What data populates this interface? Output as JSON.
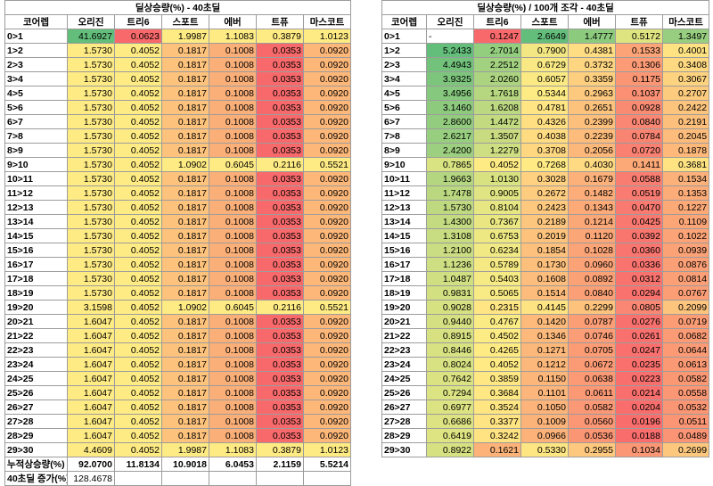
{
  "left": {
    "title": "딜상승량(%) - 40초딜",
    "headers": [
      "코어렙",
      "오리진",
      "트리6",
      "스포트",
      "에버",
      "트퓨",
      "마스코트"
    ],
    "rows": [
      [
        "0>1",
        "41.6927",
        "0.0623",
        "1.9987",
        "1.1083",
        "0.3879",
        "1.0123"
      ],
      [
        "1>2",
        "1.5730",
        "0.4052",
        "0.1817",
        "0.1008",
        "0.0353",
        "0.0920"
      ],
      [
        "2>3",
        "1.5730",
        "0.4052",
        "0.1817",
        "0.1008",
        "0.0353",
        "0.0920"
      ],
      [
        "3>4",
        "1.5730",
        "0.4052",
        "0.1817",
        "0.1008",
        "0.0353",
        "0.0920"
      ],
      [
        "4>5",
        "1.5730",
        "0.4052",
        "0.1817",
        "0.1008",
        "0.0353",
        "0.0920"
      ],
      [
        "5>6",
        "1.5730",
        "0.4052",
        "0.1817",
        "0.1008",
        "0.0353",
        "0.0920"
      ],
      [
        "6>7",
        "1.5730",
        "0.4052",
        "0.1817",
        "0.1008",
        "0.0353",
        "0.0920"
      ],
      [
        "7>8",
        "1.5730",
        "0.4052",
        "0.1817",
        "0.1008",
        "0.0353",
        "0.0920"
      ],
      [
        "8>9",
        "1.5730",
        "0.4052",
        "0.1817",
        "0.1008",
        "0.0353",
        "0.0920"
      ],
      [
        "9>10",
        "1.5730",
        "0.4052",
        "1.0902",
        "0.6045",
        "0.2116",
        "0.5521"
      ],
      [
        "10>11",
        "1.5730",
        "0.4052",
        "0.1817",
        "0.1008",
        "0.0353",
        "0.0920"
      ],
      [
        "11>12",
        "1.5730",
        "0.4052",
        "0.1817",
        "0.1008",
        "0.0353",
        "0.0920"
      ],
      [
        "12>13",
        "1.5730",
        "0.4052",
        "0.1817",
        "0.1008",
        "0.0353",
        "0.0920"
      ],
      [
        "13>14",
        "1.5730",
        "0.4052",
        "0.1817",
        "0.1008",
        "0.0353",
        "0.0920"
      ],
      [
        "14>15",
        "1.5730",
        "0.4052",
        "0.1817",
        "0.1008",
        "0.0353",
        "0.0920"
      ],
      [
        "15>16",
        "1.5730",
        "0.4052",
        "0.1817",
        "0.1008",
        "0.0353",
        "0.0920"
      ],
      [
        "16>17",
        "1.5730",
        "0.4052",
        "0.1817",
        "0.1008",
        "0.0353",
        "0.0920"
      ],
      [
        "17>18",
        "1.5730",
        "0.4052",
        "0.1817",
        "0.1008",
        "0.0353",
        "0.0920"
      ],
      [
        "18>19",
        "1.5730",
        "0.4052",
        "0.1817",
        "0.1008",
        "0.0353",
        "0.0920"
      ],
      [
        "19>20",
        "3.1598",
        "0.4052",
        "1.0902",
        "0.6045",
        "0.2116",
        "0.5521"
      ],
      [
        "20>21",
        "1.6047",
        "0.4052",
        "0.1817",
        "0.1008",
        "0.0353",
        "0.0920"
      ],
      [
        "21>22",
        "1.6047",
        "0.4052",
        "0.1817",
        "0.1008",
        "0.0353",
        "0.0920"
      ],
      [
        "22>23",
        "1.6047",
        "0.4052",
        "0.1817",
        "0.1008",
        "0.0353",
        "0.0920"
      ],
      [
        "23>24",
        "1.6047",
        "0.4052",
        "0.1817",
        "0.1008",
        "0.0353",
        "0.0920"
      ],
      [
        "24>25",
        "1.6047",
        "0.4052",
        "0.1817",
        "0.1008",
        "0.0353",
        "0.0920"
      ],
      [
        "25>26",
        "1.6047",
        "0.4052",
        "0.1817",
        "0.1008",
        "0.0353",
        "0.0920"
      ],
      [
        "26>27",
        "1.6047",
        "0.4052",
        "0.1817",
        "0.1008",
        "0.0353",
        "0.0920"
      ],
      [
        "27>28",
        "1.6047",
        "0.4052",
        "0.1817",
        "0.1008",
        "0.0353",
        "0.0920"
      ],
      [
        "28>29",
        "1.6047",
        "0.4052",
        "0.1817",
        "0.1008",
        "0.0353",
        "0.0920"
      ],
      [
        "29>30",
        "4.4609",
        "0.4052",
        "1.9987",
        "1.1083",
        "0.3879",
        "1.0123"
      ]
    ],
    "colors": [
      [
        "#63be7b",
        "#f8696b",
        "#ffeb84",
        "#ffeb84",
        "#ffeb84",
        "#ffeb84"
      ],
      [
        "#ffeb84",
        "#ffeb84",
        "#fdc27c",
        "#fbaf78",
        "#f8696b",
        "#fdb779"
      ],
      [
        "#ffeb84",
        "#ffeb84",
        "#fdc27c",
        "#fbaf78",
        "#f8696b",
        "#fdb779"
      ],
      [
        "#ffeb84",
        "#ffeb84",
        "#fdc27c",
        "#fbaf78",
        "#f8696b",
        "#fdb779"
      ],
      [
        "#ffeb84",
        "#ffeb84",
        "#fdc27c",
        "#fbaf78",
        "#f8696b",
        "#fdb779"
      ],
      [
        "#ffeb84",
        "#ffeb84",
        "#fdc27c",
        "#fbaf78",
        "#f8696b",
        "#fdb779"
      ],
      [
        "#ffeb84",
        "#ffeb84",
        "#fdc27c",
        "#fbaf78",
        "#f8696b",
        "#fdb779"
      ],
      [
        "#ffeb84",
        "#ffeb84",
        "#fdc27c",
        "#fbaf78",
        "#f8696b",
        "#fdb779"
      ],
      [
        "#ffeb84",
        "#ffeb84",
        "#fdc27c",
        "#fbaf78",
        "#f8696b",
        "#fdb779"
      ],
      [
        "#ffeb84",
        "#ffeb84",
        "#ffeb84",
        "#ffeb84",
        "#ffeb84",
        "#ffeb84"
      ],
      [
        "#ffeb84",
        "#ffeb84",
        "#fdc27c",
        "#fbaf78",
        "#f8696b",
        "#fdb779"
      ],
      [
        "#ffeb84",
        "#ffeb84",
        "#fdc27c",
        "#fbaf78",
        "#f8696b",
        "#fdb779"
      ],
      [
        "#ffeb84",
        "#ffeb84",
        "#fdc27c",
        "#fbaf78",
        "#f8696b",
        "#fdb779"
      ],
      [
        "#ffeb84",
        "#ffeb84",
        "#fdc27c",
        "#fbaf78",
        "#f8696b",
        "#fdb779"
      ],
      [
        "#ffeb84",
        "#ffeb84",
        "#fdc27c",
        "#fbaf78",
        "#f8696b",
        "#fdb779"
      ],
      [
        "#ffeb84",
        "#ffeb84",
        "#fdc27c",
        "#fbaf78",
        "#f8696b",
        "#fdb779"
      ],
      [
        "#ffeb84",
        "#ffeb84",
        "#fdc27c",
        "#fbaf78",
        "#f8696b",
        "#fdb779"
      ],
      [
        "#ffeb84",
        "#ffeb84",
        "#fdc27c",
        "#fbaf78",
        "#f8696b",
        "#fdb779"
      ],
      [
        "#ffeb84",
        "#ffeb84",
        "#fdc27c",
        "#fbaf78",
        "#f8696b",
        "#fdb779"
      ],
      [
        "#ffeb84",
        "#ffeb84",
        "#ffeb84",
        "#ffeb84",
        "#ffeb84",
        "#ffeb84"
      ],
      [
        "#ffeb84",
        "#ffeb84",
        "#fdc27c",
        "#fbaf78",
        "#f8696b",
        "#fdb779"
      ],
      [
        "#ffeb84",
        "#ffeb84",
        "#fdc27c",
        "#fbaf78",
        "#f8696b",
        "#fdb779"
      ],
      [
        "#ffeb84",
        "#ffeb84",
        "#fdc27c",
        "#fbaf78",
        "#f8696b",
        "#fdb779"
      ],
      [
        "#ffeb84",
        "#ffeb84",
        "#fdc27c",
        "#fbaf78",
        "#f8696b",
        "#fdb779"
      ],
      [
        "#ffeb84",
        "#ffeb84",
        "#fdc27c",
        "#fbaf78",
        "#f8696b",
        "#fdb779"
      ],
      [
        "#ffeb84",
        "#ffeb84",
        "#fdc27c",
        "#fbaf78",
        "#f8696b",
        "#fdb779"
      ],
      [
        "#ffeb84",
        "#ffeb84",
        "#fdc27c",
        "#fbaf78",
        "#f8696b",
        "#fdb779"
      ],
      [
        "#ffeb84",
        "#ffeb84",
        "#fdc27c",
        "#fbaf78",
        "#f8696b",
        "#fdb779"
      ],
      [
        "#ffeb84",
        "#ffeb84",
        "#fdc27c",
        "#fbaf78",
        "#f8696b",
        "#fdb779"
      ],
      [
        "#ffeb84",
        "#ffeb84",
        "#ffeb84",
        "#ffeb84",
        "#ffeb84",
        "#ffeb84"
      ]
    ],
    "total_label": "누적상승량(%)",
    "totals": [
      "92.0700",
      "11.8134",
      "10.9018",
      "6.0453",
      "2.1159",
      "5.5214"
    ],
    "increase_label": "40초딜 증가(%)",
    "increase_value": "128.4678"
  },
  "right": {
    "title": "딜상승량(%) / 100개 조각 - 40초딜",
    "headers": [
      "코어렙",
      "오리진",
      "트리6",
      "스포트",
      "에버",
      "트퓨",
      "마스코트"
    ],
    "rows": [
      [
        "0>1",
        "-",
        "0.1247",
        "2.6649",
        "1.4777",
        "0.5172",
        "1.3497"
      ],
      [
        "1>2",
        "5.2433",
        "2.7014",
        "0.7900",
        "0.4381",
        "0.1533",
        "0.4001"
      ],
      [
        "2>3",
        "4.4943",
        "2.2512",
        "0.6729",
        "0.3732",
        "0.1306",
        "0.3408"
      ],
      [
        "3>4",
        "3.9325",
        "2.0260",
        "0.6057",
        "0.3359",
        "0.1175",
        "0.3067"
      ],
      [
        "4>5",
        "3.4956",
        "1.7618",
        "0.5344",
        "0.2963",
        "0.1037",
        "0.2707"
      ],
      [
        "5>6",
        "3.1460",
        "1.6208",
        "0.4781",
        "0.2651",
        "0.0928",
        "0.2422"
      ],
      [
        "6>7",
        "2.8600",
        "1.4472",
        "0.4326",
        "0.2399",
        "0.0840",
        "0.2191"
      ],
      [
        "7>8",
        "2.6217",
        "1.3507",
        "0.4038",
        "0.2239",
        "0.0784",
        "0.2045"
      ],
      [
        "8>9",
        "2.4200",
        "1.2279",
        "0.3708",
        "0.2056",
        "0.0720",
        "0.1878"
      ],
      [
        "9>10",
        "0.7865",
        "0.4052",
        "0.7268",
        "0.4030",
        "0.1411",
        "0.3681"
      ],
      [
        "10>11",
        "1.9663",
        "1.0130",
        "0.3028",
        "0.1679",
        "0.0588",
        "0.1534"
      ],
      [
        "11>12",
        "1.7478",
        "0.9005",
        "0.2672",
        "0.1482",
        "0.0519",
        "0.1353"
      ],
      [
        "12>13",
        "1.5730",
        "0.8104",
        "0.2423",
        "0.1343",
        "0.0470",
        "0.1227"
      ],
      [
        "13>14",
        "1.4300",
        "0.7367",
        "0.2189",
        "0.1214",
        "0.0425",
        "0.1109"
      ],
      [
        "14>15",
        "1.3108",
        "0.6753",
        "0.2019",
        "0.1120",
        "0.0392",
        "0.1022"
      ],
      [
        "15>16",
        "1.2100",
        "0.6234",
        "0.1854",
        "0.1028",
        "0.0360",
        "0.0939"
      ],
      [
        "16>17",
        "1.1236",
        "0.5789",
        "0.1730",
        "0.0960",
        "0.0336",
        "0.0876"
      ],
      [
        "17>18",
        "1.0487",
        "0.5403",
        "0.1608",
        "0.0892",
        "0.0312",
        "0.0814"
      ],
      [
        "18>19",
        "0.9831",
        "0.5065",
        "0.1514",
        "0.0840",
        "0.0294",
        "0.0767"
      ],
      [
        "19>20",
        "0.9028",
        "0.2315",
        "0.4145",
        "0.2299",
        "0.0805",
        "0.2099"
      ],
      [
        "20>21",
        "0.9440",
        "0.4767",
        "0.1420",
        "0.0787",
        "0.0276",
        "0.0719"
      ],
      [
        "21>22",
        "0.8915",
        "0.4502",
        "0.1346",
        "0.0746",
        "0.0261",
        "0.0682"
      ],
      [
        "22>23",
        "0.8446",
        "0.4265",
        "0.1271",
        "0.0705",
        "0.0247",
        "0.0644"
      ],
      [
        "23>24",
        "0.8024",
        "0.4052",
        "0.1212",
        "0.0672",
        "0.0235",
        "0.0613"
      ],
      [
        "24>25",
        "0.7642",
        "0.3859",
        "0.1150",
        "0.0638",
        "0.0223",
        "0.0582"
      ],
      [
        "25>26",
        "0.7294",
        "0.3684",
        "0.1101",
        "0.0611",
        "0.0214",
        "0.0558"
      ],
      [
        "26>27",
        "0.6977",
        "0.3524",
        "0.1050",
        "0.0582",
        "0.0204",
        "0.0532"
      ],
      [
        "27>28",
        "0.6686",
        "0.3377",
        "0.1009",
        "0.0560",
        "0.0196",
        "0.0511"
      ],
      [
        "28>29",
        "0.6419",
        "0.3242",
        "0.0966",
        "0.0536",
        "0.0188",
        "0.0489"
      ],
      [
        "29>30",
        "0.8922",
        "0.1621",
        "0.5330",
        "0.2955",
        "0.1034",
        "0.2699"
      ]
    ],
    "colors": [
      [
        "#ffffff",
        "#f8696b",
        "#63be7b",
        "#8ccb7e",
        "#dde480",
        "#98ce7f"
      ],
      [
        "#63be7b",
        "#93cd7e",
        "#f3e783",
        "#ffdd82",
        "#fca477",
        "#ffe383"
      ],
      [
        "#72c27c",
        "#a2d17f",
        "#f8e984",
        "#fed580",
        "#fc9b76",
        "#fed981"
      ],
      [
        "#7dc57d",
        "#abd380",
        "#fbea84",
        "#fdcf7f",
        "#fb9675",
        "#fed380"
      ],
      [
        "#86c87d",
        "#b6d680",
        "#feeb84",
        "#fdc97e",
        "#fb9074",
        "#fdcb7e"
      ],
      [
        "#8dca7e",
        "#bcd881",
        "#ffe583",
        "#fdc37d",
        "#fa8b73",
        "#fdc47d"
      ],
      [
        "#93cc7e",
        "#c3da81",
        "#ffdf82",
        "#fdbf7c",
        "#fa8773",
        "#fdbf7c"
      ],
      [
        "#98ce7f",
        "#c8db81",
        "#ffdb81",
        "#fdbc7b",
        "#fa8472",
        "#fdbc7b"
      ],
      [
        "#9ccf7f",
        "#cede82",
        "#ffd781",
        "#fcb77a",
        "#fa8172",
        "#fdb87a"
      ],
      [
        "#d9e381",
        "#feeb84",
        "#ffea84",
        "#ffda82",
        "#fca877",
        "#ffe383"
      ],
      [
        "#b4d680",
        "#d9e281",
        "#ffd180",
        "#fcb17a",
        "#f97e71",
        "#fcb17a"
      ],
      [
        "#bad880",
        "#e0e482",
        "#fecc7f",
        "#fcad79",
        "#f97b71",
        "#fcac79"
      ],
      [
        "#bfd981",
        "#e6e683",
        "#fec97e",
        "#fcaa78",
        "#f97a70",
        "#fca978"
      ],
      [
        "#c4db81",
        "#eae783",
        "#fdc67e",
        "#fba878",
        "#f97870",
        "#fca678"
      ],
      [
        "#c8dc81",
        "#eee883",
        "#fdc37d",
        "#fba677",
        "#f9766f",
        "#fca477"
      ],
      [
        "#cbdd82",
        "#f1e983",
        "#fdc17d",
        "#fba477",
        "#f9756f",
        "#fca277"
      ],
      [
        "#cede82",
        "#f4e983",
        "#fdbf7c",
        "#fba277",
        "#f9746f",
        "#fba076"
      ],
      [
        "#d0df82",
        "#f6ea84",
        "#fdbd7c",
        "#fba176",
        "#f9736e",
        "#fb9f76"
      ],
      [
        "#d3e082",
        "#f8ea84",
        "#fdbc7b",
        "#fba076",
        "#f9726e",
        "#fb9e76"
      ],
      [
        "#d6e182",
        "#ffe583",
        "#fee383",
        "#fdc37d",
        "#fa8773",
        "#fdc47d"
      ],
      [
        "#d5e082",
        "#fbeb84",
        "#fdba7b",
        "#fb9e76",
        "#f9716e",
        "#fb9c75"
      ],
      [
        "#d7e182",
        "#fdeb84",
        "#fdb97b",
        "#fb9d76",
        "#f9716e",
        "#fb9b75"
      ],
      [
        "#d8e282",
        "#ffeb84",
        "#fcb87a",
        "#fb9c75",
        "#f9706e",
        "#fb9a75"
      ],
      [
        "#d9e282",
        "#ffea84",
        "#fcb77a",
        "#fb9b75",
        "#f9706d",
        "#fb9975"
      ],
      [
        "#dae282",
        "#ffe883",
        "#fcb67a",
        "#fb9a75",
        "#f96f6d",
        "#fb9874"
      ],
      [
        "#dbe382",
        "#ffe783",
        "#fcb57a",
        "#fb9975",
        "#f96f6d",
        "#fb9774"
      ],
      [
        "#dce382",
        "#ffe683",
        "#fcb47a",
        "#fb9875",
        "#f96e6d",
        "#fb9674"
      ],
      [
        "#dde382",
        "#ffe483",
        "#fcb37a",
        "#fb9775",
        "#f96e6d",
        "#fb9574"
      ],
      [
        "#dee482",
        "#ffe383",
        "#fcb279",
        "#fb9674",
        "#f96d6d",
        "#fb9474"
      ],
      [
        "#d6e182",
        "#fcb279",
        "#fee783",
        "#fec87e",
        "#fb9775",
        "#fdc87e"
      ]
    ]
  }
}
